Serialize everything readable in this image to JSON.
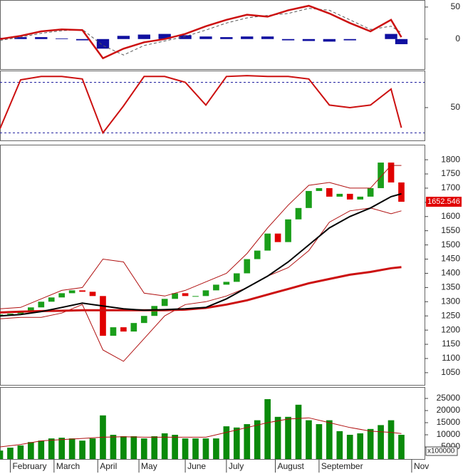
{
  "chart_data": [
    {
      "type": "macd",
      "xlim": [
        0,
        165
      ],
      "ylim": [
        -47,
        61
      ],
      "yticks": [
        0,
        50
      ],
      "series": [
        {
          "kind": "bar",
          "color": "#1010a0",
          "x": [
            0,
            8,
            16,
            24,
            32,
            40,
            48,
            56,
            64,
            72,
            80,
            88,
            96,
            104,
            112,
            120,
            128,
            136,
            144,
            152,
            156
          ],
          "values": [
            2,
            3,
            3,
            1,
            -2,
            -15,
            5,
            7,
            8,
            6,
            4,
            3,
            4,
            4,
            -2,
            -3,
            -4,
            -2,
            0,
            8,
            -8
          ]
        },
        {
          "kind": "line",
          "color": "#555555",
          "style": "dashed",
          "x": [
            0,
            8,
            16,
            24,
            32,
            40,
            48,
            56,
            64,
            72,
            80,
            88,
            96,
            104,
            112,
            120,
            128,
            136,
            144,
            152,
            156
          ],
          "values": [
            -2,
            3,
            9,
            13,
            15,
            -10,
            -25,
            -10,
            -3,
            4,
            14,
            25,
            33,
            37,
            40,
            48,
            45,
            30,
            15,
            20,
            10
          ]
        },
        {
          "kind": "line",
          "color": "#cc1010",
          "width": 2.5,
          "x": [
            0,
            8,
            16,
            24,
            32,
            40,
            48,
            56,
            64,
            72,
            80,
            88,
            96,
            104,
            112,
            120,
            128,
            136,
            144,
            152,
            156
          ],
          "values": [
            0,
            5,
            12,
            15,
            14,
            -30,
            -15,
            -5,
            0,
            8,
            20,
            30,
            38,
            35,
            45,
            52,
            40,
            25,
            12,
            30,
            3
          ]
        }
      ]
    },
    {
      "type": "stochastic",
      "xlim": [
        0,
        165
      ],
      "ylim": [
        11,
        94
      ],
      "yticks": [
        50
      ],
      "levels": [
        20,
        80
      ],
      "level_color": "#2020a0",
      "series": [
        {
          "kind": "line",
          "color": "#cc1010",
          "width": 2,
          "x": [
            0,
            8,
            16,
            24,
            32,
            40,
            48,
            56,
            64,
            72,
            80,
            88,
            96,
            104,
            112,
            120,
            128,
            136,
            144,
            152,
            156
          ],
          "values": [
            25,
            83,
            87,
            87,
            84,
            20,
            52,
            87,
            87,
            80,
            53,
            87,
            88,
            87,
            87,
            84,
            53,
            50,
            53,
            72,
            26
          ]
        }
      ]
    },
    {
      "type": "candlestick",
      "xlim": [
        0,
        165
      ],
      "ylim": [
        1007,
        1853
      ],
      "yticks": [
        1050,
        1100,
        1150,
        1200,
        1250,
        1300,
        1350,
        1400,
        1450,
        1500,
        1550,
        1600,
        1650,
        1700,
        1750,
        1800
      ],
      "up_color": "#1a9e1a",
      "down_color": "#e00000",
      "last_label": "1652.546",
      "x": [
        0,
        4,
        8,
        12,
        16,
        20,
        24,
        28,
        32,
        36,
        40,
        44,
        48,
        52,
        56,
        60,
        64,
        68,
        72,
        76,
        80,
        84,
        88,
        92,
        96,
        100,
        104,
        108,
        112,
        116,
        120,
        124,
        128,
        132,
        136,
        140,
        144,
        148,
        152,
        156
      ],
      "open": [
        1250,
        1255,
        1258,
        1265,
        1280,
        1300,
        1315,
        1330,
        1340,
        1335,
        1320,
        1180,
        1210,
        1195,
        1225,
        1250,
        1285,
        1310,
        1330,
        1320,
        1320,
        1340,
        1360,
        1370,
        1400,
        1450,
        1480,
        1540,
        1510,
        1590,
        1630,
        1690,
        1700,
        1670,
        1680,
        1660,
        1670,
        1700,
        1790,
        1720
      ],
      "close": [
        1255,
        1258,
        1265,
        1280,
        1300,
        1315,
        1330,
        1340,
        1335,
        1320,
        1180,
        1210,
        1195,
        1225,
        1250,
        1285,
        1310,
        1330,
        1320,
        1320,
        1340,
        1360,
        1370,
        1400,
        1450,
        1480,
        1540,
        1510,
        1590,
        1630,
        1690,
        1700,
        1670,
        1680,
        1660,
        1670,
        1700,
        1790,
        1720,
        1652
      ],
      "series": [
        {
          "kind": "line",
          "color": "#b01010",
          "width": 1,
          "x": [
            0,
            8,
            16,
            24,
            32,
            40,
            48,
            56,
            64,
            72,
            80,
            88,
            96,
            104,
            112,
            120,
            128,
            136,
            144,
            152,
            156
          ],
          "values": [
            1275,
            1280,
            1310,
            1340,
            1350,
            1450,
            1440,
            1330,
            1320,
            1340,
            1370,
            1400,
            1470,
            1560,
            1640,
            1710,
            1720,
            1700,
            1700,
            1780,
            1780
          ]
        },
        {
          "kind": "line",
          "color": "#b01010",
          "width": 1,
          "x": [
            0,
            8,
            16,
            24,
            32,
            40,
            48,
            56,
            64,
            72,
            80,
            88,
            96,
            104,
            112,
            120,
            128,
            136,
            144,
            152,
            156
          ],
          "values": [
            1240,
            1245,
            1245,
            1260,
            1290,
            1130,
            1090,
            1170,
            1250,
            1290,
            1300,
            1320,
            1350,
            1390,
            1420,
            1480,
            1580,
            1620,
            1630,
            1610,
            1620
          ]
        },
        {
          "kind": "line",
          "color": "#cc1010",
          "width": 3,
          "x": [
            0,
            8,
            16,
            24,
            32,
            40,
            48,
            56,
            64,
            72,
            80,
            88,
            96,
            104,
            112,
            120,
            128,
            136,
            144,
            152,
            156
          ],
          "values": [
            1262,
            1265,
            1267,
            1268,
            1270,
            1270,
            1270,
            1270,
            1270,
            1272,
            1278,
            1290,
            1305,
            1325,
            1345,
            1365,
            1380,
            1395,
            1405,
            1418,
            1422
          ]
        },
        {
          "kind": "line",
          "color": "#000000",
          "width": 2,
          "x": [
            0,
            8,
            16,
            24,
            32,
            40,
            48,
            56,
            64,
            72,
            80,
            88,
            96,
            104,
            112,
            120,
            128,
            136,
            144,
            152,
            156
          ],
          "values": [
            1250,
            1255,
            1265,
            1280,
            1295,
            1285,
            1275,
            1270,
            1272,
            1275,
            1280,
            1310,
            1350,
            1390,
            1440,
            1500,
            1560,
            1600,
            1630,
            1670,
            1680
          ]
        }
      ]
    },
    {
      "type": "volume",
      "xlim": [
        0,
        165
      ],
      "ylim": [
        0,
        29700
      ],
      "yticks": [
        5000,
        10000,
        15000,
        20000,
        25000
      ],
      "unit": "x100000",
      "xticks": [
        {
          "value": 4,
          "label": "February"
        },
        {
          "value": 21,
          "label": "March"
        },
        {
          "value": 38,
          "label": "April"
        },
        {
          "value": 54,
          "label": "May"
        },
        {
          "value": 72,
          "label": "June"
        },
        {
          "value": 88,
          "label": "July"
        },
        {
          "value": 107,
          "label": "August"
        },
        {
          "value": 124,
          "label": "September"
        },
        {
          "value": 160,
          "label": "Nov"
        }
      ],
      "series": [
        {
          "kind": "bar",
          "color": "#0a8a0a",
          "x": [
            0,
            4,
            8,
            12,
            16,
            20,
            24,
            28,
            32,
            36,
            40,
            44,
            48,
            52,
            56,
            60,
            64,
            68,
            72,
            76,
            80,
            84,
            88,
            92,
            96,
            100,
            104,
            108,
            112,
            116,
            120,
            124,
            128,
            132,
            136,
            140,
            144,
            148,
            152,
            156
          ],
          "values": [
            3500,
            4700,
            5600,
            7000,
            7600,
            8500,
            8800,
            8500,
            7600,
            8500,
            18000,
            10000,
            9400,
            9400,
            8500,
            9400,
            10600,
            10000,
            8500,
            8500,
            8500,
            8500,
            13500,
            13000,
            14400,
            16000,
            24700,
            17400,
            17400,
            22400,
            16000,
            14400,
            16000,
            11500,
            10000,
            10600,
            12400,
            14000,
            16000,
            10000
          ]
        },
        {
          "kind": "line",
          "color": "#b01010",
          "width": 1,
          "x": [
            0,
            8,
            16,
            24,
            32,
            40,
            48,
            56,
            64,
            72,
            80,
            88,
            96,
            104,
            112,
            120,
            128,
            136,
            144,
            152,
            156
          ],
          "values": [
            5000,
            6000,
            7500,
            8000,
            8500,
            9000,
            9200,
            9000,
            9000,
            9000,
            9000,
            11000,
            13000,
            15000,
            16500,
            17000,
            15000,
            13000,
            11500,
            11000,
            10500
          ]
        }
      ]
    }
  ]
}
